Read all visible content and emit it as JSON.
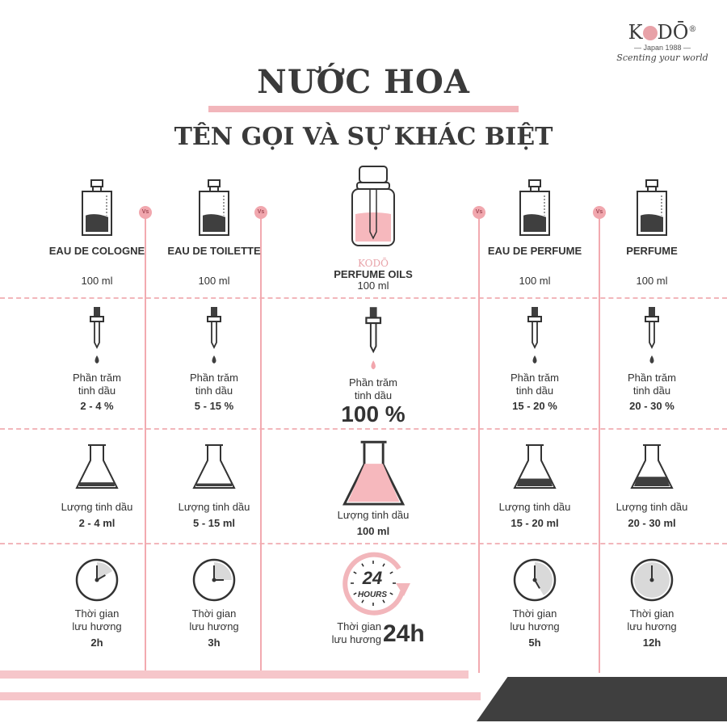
{
  "logo": {
    "brand_left": "K",
    "brand_right": "DŌ",
    "registered": "®",
    "tagline": "Japan 1988",
    "script": "Scenting your world"
  },
  "title": "NƯỚC HOA",
  "subtitle": "TÊN GỌI VÀ SỰ KHÁC BIỆT",
  "vs_label": "Vs",
  "colors": {
    "accent_pink": "#f2b6bb",
    "dark": "#3f3f3f",
    "text": "#333333"
  },
  "columns": [
    {
      "name": "EAU DE  COLOGNE",
      "volume": "100 ml",
      "oil_label_1": "Phần trăm",
      "oil_label_2": "tinh dầu",
      "oil_percent": "2 - 4 %",
      "amount_label": "Lượng tinh dầu",
      "amount": "2 - 4 ml",
      "time_label_1": "Thời gian",
      "time_label_2": "lưu hương",
      "time": "2h",
      "bottle_fill": 0.45,
      "flask_fill": 0.15,
      "clock_hours": 2
    },
    {
      "name": "EAU DE TOILETTE",
      "volume": "100 ml",
      "oil_label_1": "Phần trăm",
      "oil_label_2": "tinh dầu",
      "oil_percent": "5 - 15 %",
      "amount_label": "Lượng tinh dầu",
      "amount": "5 - 15 ml",
      "time_label_1": "Thời gian",
      "time_label_2": "lưu hương",
      "time": "3h",
      "bottle_fill": 0.45,
      "flask_fill": 0.12,
      "clock_hours": 3
    },
    {
      "featured": true,
      "brand": "KODŌ",
      "name": "PERFUME OILS",
      "volume": "100 ml",
      "oil_label_1": "Phần trăm",
      "oil_label_2": "tinh dầu",
      "oil_percent": "100 %",
      "amount_label": "Lượng tinh dầu",
      "amount": "100 ml",
      "clock_number": "24",
      "clock_unit": "HOURS",
      "time_label_1": "Thời gian",
      "time_label_2": "lưu hương",
      "time": "24h",
      "bottle_fill": 0.6,
      "flask_fill": 0.75,
      "clock_hours": 24
    },
    {
      "name": "EAU DE PERFUME",
      "volume": "100 ml",
      "oil_label_1": "Phần trăm",
      "oil_label_2": "tinh dầu",
      "oil_percent": "15 - 20 %",
      "amount_label": "Lượng tinh dầu",
      "amount": "15 - 20 ml",
      "time_label_1": "Thời gian",
      "time_label_2": "lưu hương",
      "time": "5h",
      "bottle_fill": 0.45,
      "flask_fill": 0.25,
      "clock_hours": 5
    },
    {
      "name": "PERFUME",
      "volume": "100 ml",
      "oil_label_1": "Phần trăm",
      "oil_label_2": "tinh dầu",
      "oil_percent": "20 - 30 %",
      "amount_label": "Lượng tinh dầu",
      "amount": "20 - 30 ml",
      "time_label_1": "Thời gian",
      "time_label_2": "lưu hương",
      "time": "12h",
      "bottle_fill": 0.45,
      "flask_fill": 0.3,
      "clock_hours": 12
    }
  ]
}
